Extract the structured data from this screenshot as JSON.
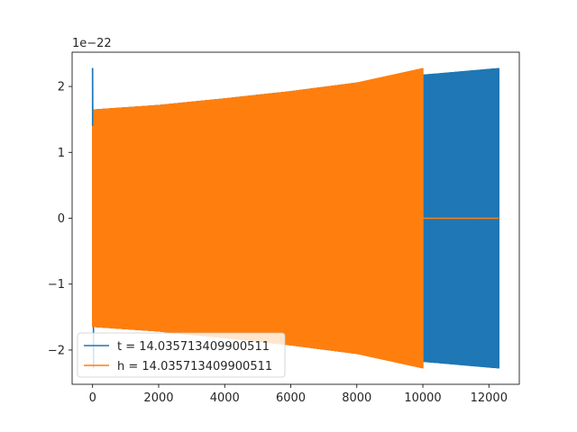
{
  "chart_data": {
    "type": "line",
    "title": "",
    "xlabel": "",
    "ylabel": "",
    "y_offset_text": "1e−22",
    "xlim": [
      -620,
      12920
    ],
    "ylim": [
      -2.52,
      2.52
    ],
    "x_ticks": [
      0,
      2000,
      4000,
      6000,
      8000,
      10000,
      12000
    ],
    "y_ticks": [
      -2,
      -1,
      0,
      1,
      2
    ],
    "x_tick_labels": [
      "0",
      "2000",
      "4000",
      "6000",
      "8000",
      "10000",
      "12000"
    ],
    "y_tick_labels": [
      "−2",
      "−1",
      "0",
      "1",
      "2"
    ],
    "grid": false,
    "legend_position": "lower-left",
    "series": [
      {
        "name": "t = 14.035713409900511",
        "color": "#1f77b4",
        "x_start": 0,
        "x_end": 12300,
        "envelope_x": [
          0,
          2000,
          4000,
          6000,
          8000,
          10000,
          12300
        ],
        "envelope_amplitude": [
          1.65,
          1.72,
          1.82,
          1.93,
          2.06,
          2.18,
          2.28
        ],
        "initial_spike": [
          {
            "x": 0,
            "y": 2.28
          },
          {
            "x": 30,
            "y": -2.28
          }
        ]
      },
      {
        "name": "h = 14.035713409900511",
        "color": "#ff7f0e",
        "x_start": 0,
        "x_end": 10000,
        "envelope_x": [
          0,
          2000,
          4000,
          6000,
          8000,
          10000
        ],
        "envelope_amplitude": [
          1.65,
          1.72,
          1.82,
          1.93,
          2.06,
          2.28
        ],
        "after_end_value": 0,
        "after_end_x_end": 12300
      }
    ]
  }
}
